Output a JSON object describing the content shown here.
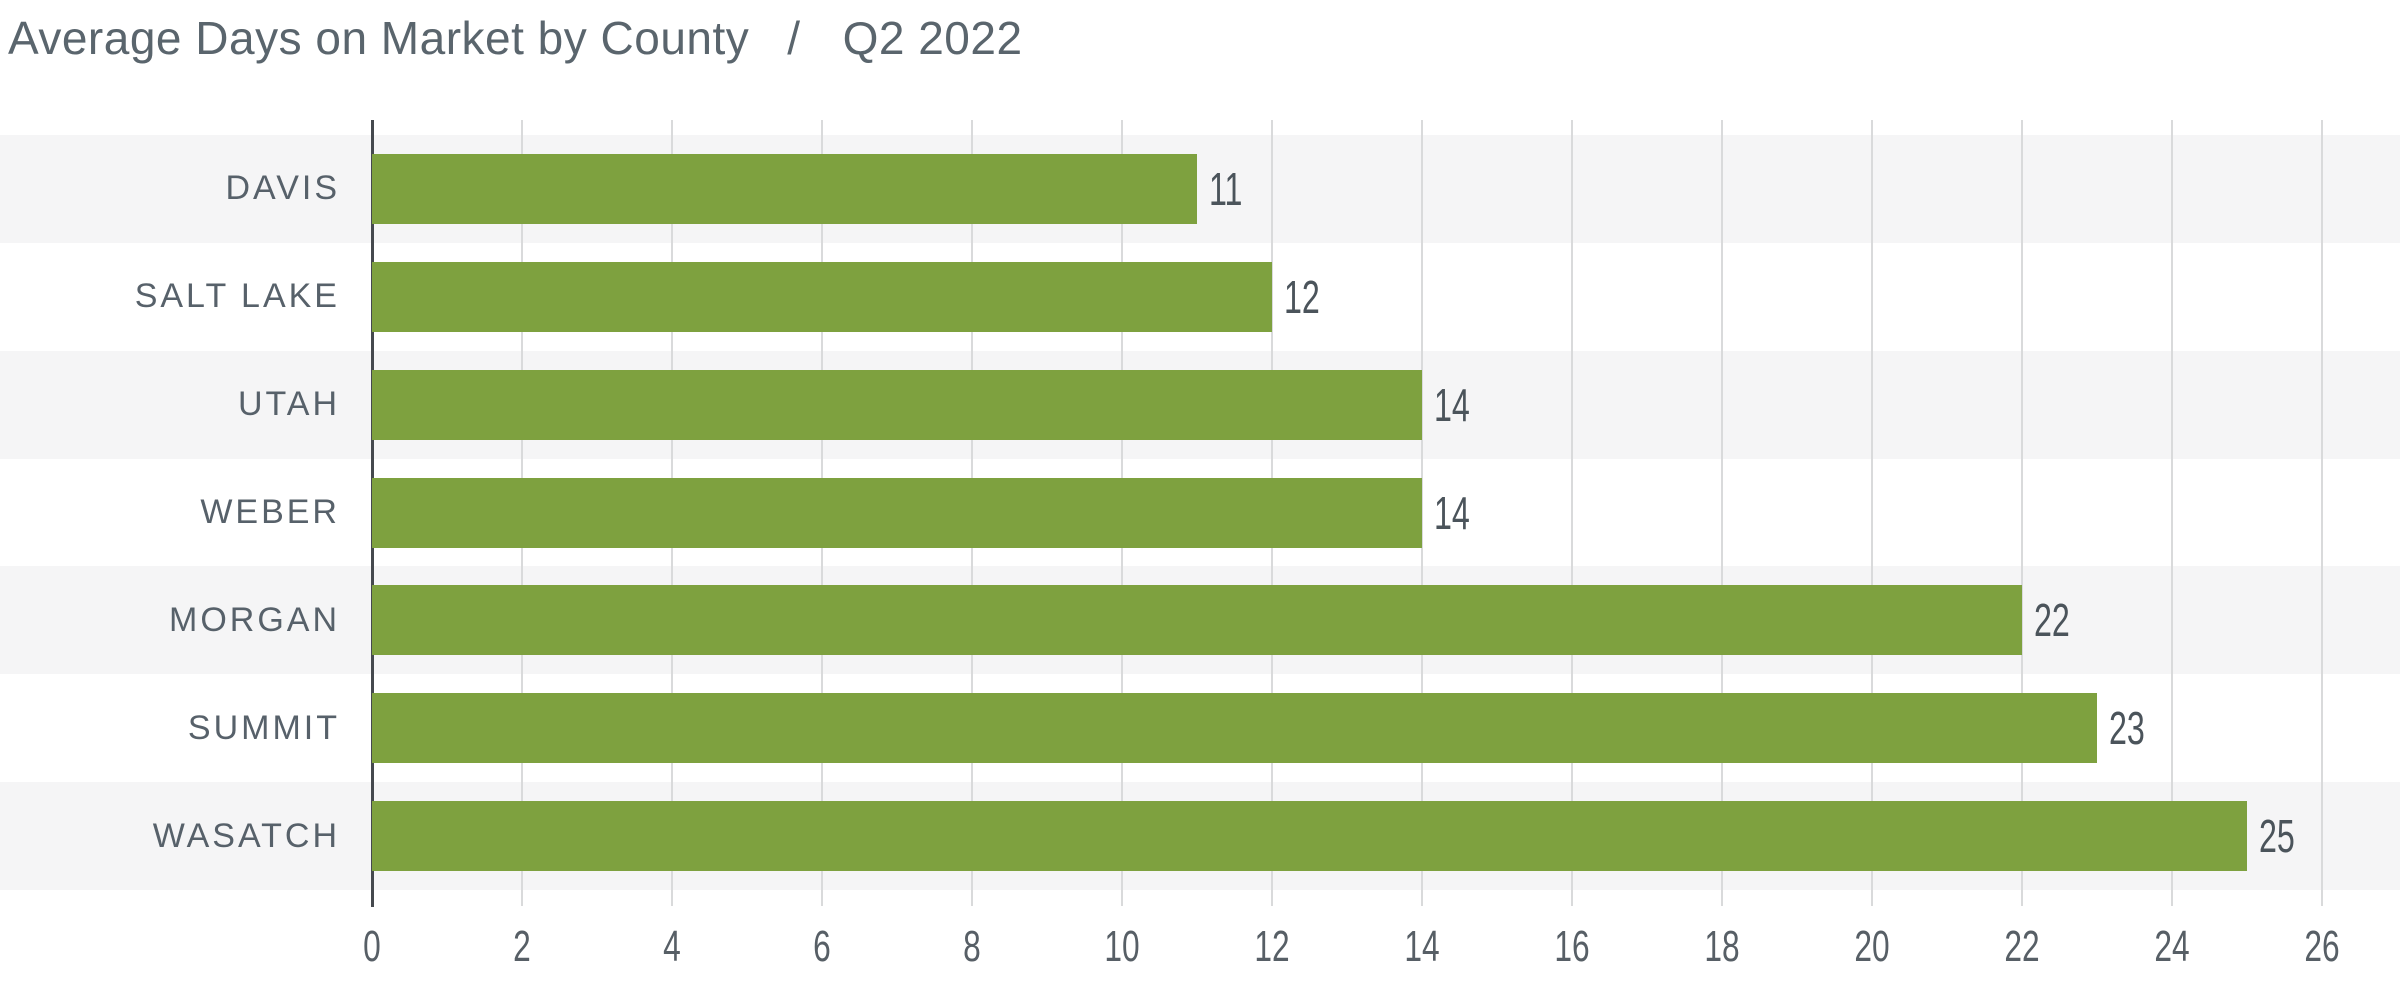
{
  "title": {
    "main": "Average Days on Market by County",
    "separator": "/",
    "period": "Q2 2022"
  },
  "chart_data": {
    "type": "bar",
    "orientation": "horizontal",
    "title": "Average Days on Market by County / Q2 2022",
    "categories": [
      "DAVIS",
      "SALT LAKE",
      "UTAH",
      "WEBER",
      "MORGAN",
      "SUMMIT",
      "WASATCH"
    ],
    "values": [
      11,
      12,
      14,
      14,
      22,
      23,
      25
    ],
    "value_labels": [
      "11",
      "12",
      "14",
      "14",
      "22",
      "23",
      "25"
    ],
    "xlabel": "",
    "ylabel": "",
    "xlim": [
      0,
      26
    ],
    "xticks": [
      0,
      2,
      4,
      6,
      8,
      10,
      12,
      14,
      16,
      18,
      20,
      22,
      24,
      26
    ],
    "grid": true,
    "legend": false,
    "row_striping": "alternating, first row shaded",
    "colors": {
      "bar": "#7ea13f",
      "stripe": "#f5f5f6",
      "grid": "#d9dadb",
      "axis": "#45494e",
      "category_label": "#57616a",
      "value_label": "#4b545b",
      "tick_label": "#575f66",
      "title": "#5a656d",
      "background": "#ffffff"
    }
  }
}
